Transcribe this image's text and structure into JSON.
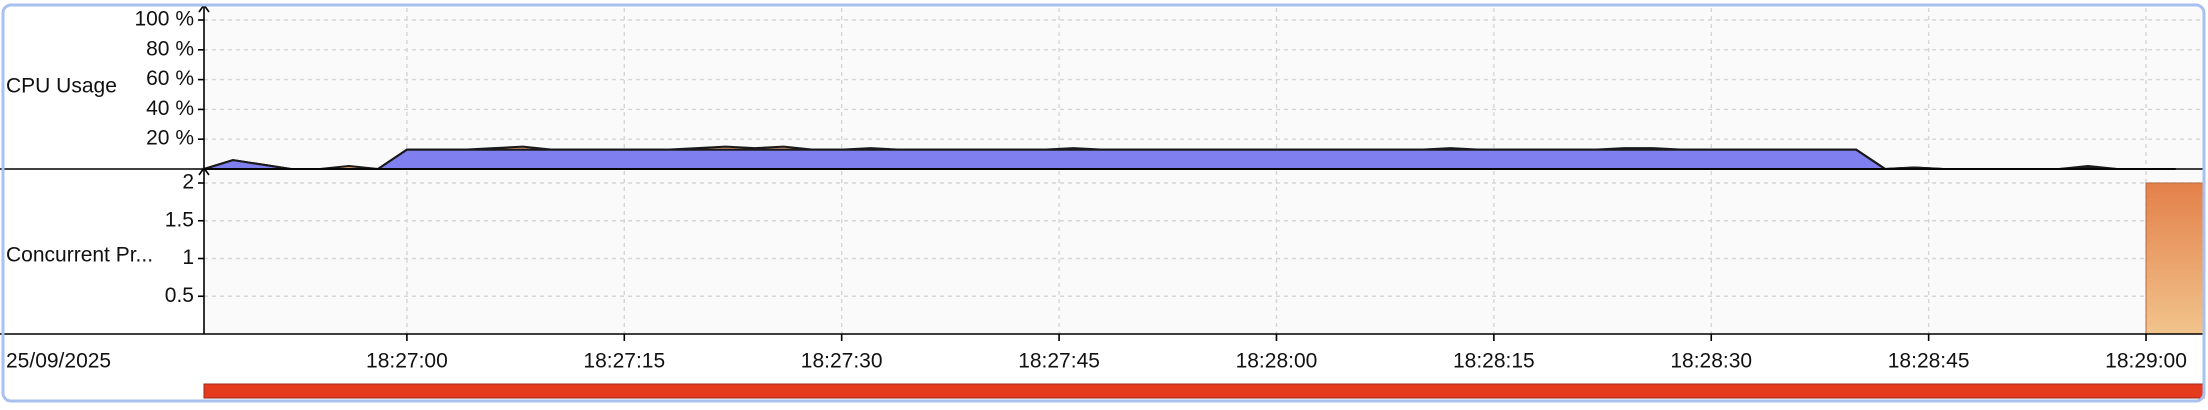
{
  "chart_data": [
    {
      "type": "area",
      "ylabel": "CPU Usage",
      "ylim": [
        0,
        100
      ],
      "yticks": [
        {
          "value": 20,
          "label": "20 %"
        },
        {
          "value": 40,
          "label": "40 %"
        },
        {
          "value": 60,
          "label": "60 %"
        },
        {
          "value": 80,
          "label": "80 %"
        },
        {
          "value": 100,
          "label": "100 %"
        }
      ],
      "grid": true,
      "stacked": true,
      "x": [
        "18:26:46",
        "18:26:48",
        "18:26:50",
        "18:26:52",
        "18:26:54",
        "18:26:56",
        "18:26:58",
        "18:27:00",
        "18:27:02",
        "18:27:04",
        "18:27:06",
        "18:27:08",
        "18:27:10",
        "18:27:12",
        "18:27:14",
        "18:27:16",
        "18:27:18",
        "18:27:20",
        "18:27:22",
        "18:27:24",
        "18:27:26",
        "18:27:28",
        "18:27:30",
        "18:27:32",
        "18:27:34",
        "18:27:36",
        "18:27:38",
        "18:27:40",
        "18:27:42",
        "18:27:44",
        "18:27:46",
        "18:27:48",
        "18:27:50",
        "18:27:52",
        "18:27:54",
        "18:27:56",
        "18:27:58",
        "18:28:00",
        "18:28:02",
        "18:28:04",
        "18:28:06",
        "18:28:08",
        "18:28:10",
        "18:28:12",
        "18:28:14",
        "18:28:16",
        "18:28:18",
        "18:28:20",
        "18:28:22",
        "18:28:24",
        "18:28:26",
        "18:28:28",
        "18:28:30",
        "18:28:32",
        "18:28:34",
        "18:28:36",
        "18:28:38",
        "18:28:40",
        "18:28:42",
        "18:28:44",
        "18:28:46",
        "18:28:48",
        "18:28:50",
        "18:28:52",
        "18:28:54",
        "18:28:56",
        "18:28:58",
        "18:29:00",
        "18:29:02"
      ],
      "series": [
        {
          "color": "#7f7ff0",
          "values": [
            0,
            6,
            3,
            0,
            0,
            0,
            0,
            13,
            13,
            13,
            13,
            13,
            13,
            13,
            13,
            13,
            13,
            13,
            13,
            13,
            13,
            13,
            13,
            13,
            13,
            13,
            13,
            13,
            13,
            13,
            13,
            13,
            13,
            13,
            13,
            13,
            13,
            13,
            13,
            13,
            13,
            13,
            13,
            13,
            13,
            13,
            13,
            13,
            13,
            13,
            13,
            13,
            13,
            13,
            13,
            13,
            13,
            13,
            0,
            1,
            0,
            0,
            0,
            0,
            0,
            1,
            0,
            0,
            0
          ]
        },
        {
          "color": "#f0a878",
          "values": [
            0,
            0,
            0,
            0,
            0,
            2,
            0,
            0,
            0,
            0,
            1,
            2,
            0,
            0,
            0,
            0,
            0,
            1,
            2,
            1,
            2,
            0,
            0,
            1,
            0,
            0,
            0,
            0,
            0,
            0,
            1,
            0,
            0,
            0,
            0,
            0,
            0,
            0,
            0,
            0,
            0,
            0,
            0,
            1,
            0,
            0,
            0,
            0,
            0,
            1,
            1,
            0,
            0,
            0,
            0,
            0,
            0,
            0,
            0,
            0,
            0,
            0,
            0,
            0,
            0,
            1,
            0,
            0,
            0
          ]
        }
      ]
    },
    {
      "type": "bar",
      "ylabel": "Concurrent Pr...",
      "ylim": [
        0,
        2
      ],
      "yticks": [
        0.5,
        1,
        1.5,
        2
      ],
      "grid": true,
      "bars": [
        {
          "start": "18:29:00",
          "end": "18:29:04",
          "value": 2
        }
      ],
      "colors": [
        "#e4804a",
        "#f1c48c"
      ]
    }
  ],
  "x_axis": {
    "date": "25/09/2025",
    "xlim": [
      "18:26:46",
      "18:29:04"
    ],
    "xticks": [
      "18:27:00",
      "18:27:15",
      "18:27:30",
      "18:27:45",
      "18:28:00",
      "18:28:15",
      "18:28:30",
      "18:28:45",
      "18:29:00"
    ]
  }
}
